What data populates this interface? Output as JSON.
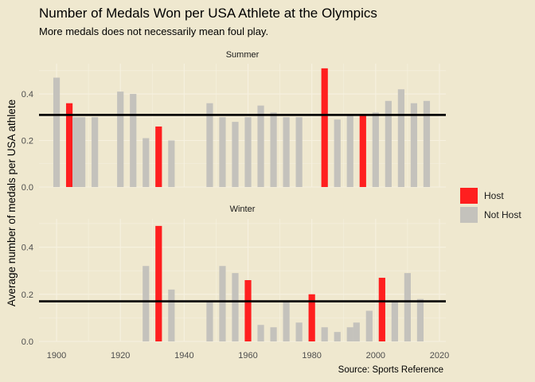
{
  "title": "Number of Medals Won per USA Athlete at the Olympics",
  "subtitle": "More medals does not necessarily mean foul play.",
  "source": "Source: Sports Reference",
  "colors": {
    "host": "#ff1f1f",
    "not_host": "#c4c2bc",
    "background": "#efe8cf",
    "grid": "#f6f1e0"
  },
  "chart_data": {
    "type": "bar",
    "ylabel": "Average number of medals per USA athlete",
    "xlabel": "",
    "x_ticks": [
      1900,
      1920,
      1940,
      1960,
      1980,
      2000,
      2020
    ],
    "xlim": [
      1894.5,
      2022
    ],
    "legend": {
      "position": "right",
      "entries": [
        {
          "label": "Host",
          "key": "host"
        },
        {
          "label": "Not Host",
          "key": "not_host"
        }
      ]
    },
    "panels": [
      {
        "name": "Summer",
        "ylim": [
          0,
          0.53
        ],
        "y_ticks": [
          0.0,
          0.2,
          0.4
        ],
        "y_tick_labels": [
          "0.0",
          "0.2",
          "0.4"
        ],
        "reference_line": 0.31,
        "bars": [
          {
            "year": 1900,
            "value": 0.47,
            "host": false
          },
          {
            "year": 1904,
            "value": 0.36,
            "host": true
          },
          {
            "year": 1906,
            "value": 0.3,
            "host": false
          },
          {
            "year": 1908,
            "value": 0.3,
            "host": false
          },
          {
            "year": 1912,
            "value": 0.3,
            "host": false
          },
          {
            "year": 1920,
            "value": 0.41,
            "host": false
          },
          {
            "year": 1924,
            "value": 0.4,
            "host": false
          },
          {
            "year": 1928,
            "value": 0.21,
            "host": false
          },
          {
            "year": 1932,
            "value": 0.26,
            "host": true
          },
          {
            "year": 1936,
            "value": 0.2,
            "host": false
          },
          {
            "year": 1948,
            "value": 0.36,
            "host": false
          },
          {
            "year": 1952,
            "value": 0.3,
            "host": false
          },
          {
            "year": 1956,
            "value": 0.28,
            "host": false
          },
          {
            "year": 1960,
            "value": 0.3,
            "host": false
          },
          {
            "year": 1964,
            "value": 0.35,
            "host": false
          },
          {
            "year": 1968,
            "value": 0.32,
            "host": false
          },
          {
            "year": 1972,
            "value": 0.3,
            "host": false
          },
          {
            "year": 1976,
            "value": 0.3,
            "host": false
          },
          {
            "year": 1984,
            "value": 0.51,
            "host": true
          },
          {
            "year": 1988,
            "value": 0.29,
            "host": false
          },
          {
            "year": 1992,
            "value": 0.31,
            "host": false
          },
          {
            "year": 1996,
            "value": 0.31,
            "host": true
          },
          {
            "year": 2000,
            "value": 0.32,
            "host": false
          },
          {
            "year": 2004,
            "value": 0.37,
            "host": false
          },
          {
            "year": 2008,
            "value": 0.42,
            "host": false
          },
          {
            "year": 2012,
            "value": 0.36,
            "host": false
          },
          {
            "year": 2016,
            "value": 0.37,
            "host": false
          }
        ]
      },
      {
        "name": "Winter",
        "ylim": [
          0,
          0.52
        ],
        "y_ticks": [
          0.0,
          0.2,
          0.4
        ],
        "y_tick_labels": [
          "0.0",
          "0.2",
          "0.4"
        ],
        "reference_line": 0.17,
        "bars": [
          {
            "year": 1928,
            "value": 0.32,
            "host": false
          },
          {
            "year": 1932,
            "value": 0.49,
            "host": true
          },
          {
            "year": 1936,
            "value": 0.22,
            "host": false
          },
          {
            "year": 1948,
            "value": 0.17,
            "host": false
          },
          {
            "year": 1952,
            "value": 0.32,
            "host": false
          },
          {
            "year": 1956,
            "value": 0.29,
            "host": false
          },
          {
            "year": 1960,
            "value": 0.26,
            "host": true
          },
          {
            "year": 1964,
            "value": 0.07,
            "host": false
          },
          {
            "year": 1968,
            "value": 0.06,
            "host": false
          },
          {
            "year": 1972,
            "value": 0.17,
            "host": false
          },
          {
            "year": 1976,
            "value": 0.08,
            "host": false
          },
          {
            "year": 1980,
            "value": 0.2,
            "host": true
          },
          {
            "year": 1984,
            "value": 0.06,
            "host": false
          },
          {
            "year": 1988,
            "value": 0.04,
            "host": false
          },
          {
            "year": 1992,
            "value": 0.06,
            "host": false
          },
          {
            "year": 1994,
            "value": 0.08,
            "host": false
          },
          {
            "year": 1998,
            "value": 0.13,
            "host": false
          },
          {
            "year": 2002,
            "value": 0.27,
            "host": true
          },
          {
            "year": 2006,
            "value": 0.17,
            "host": false
          },
          {
            "year": 2010,
            "value": 0.29,
            "host": false
          },
          {
            "year": 2014,
            "value": 0.18,
            "host": false
          }
        ]
      }
    ]
  }
}
